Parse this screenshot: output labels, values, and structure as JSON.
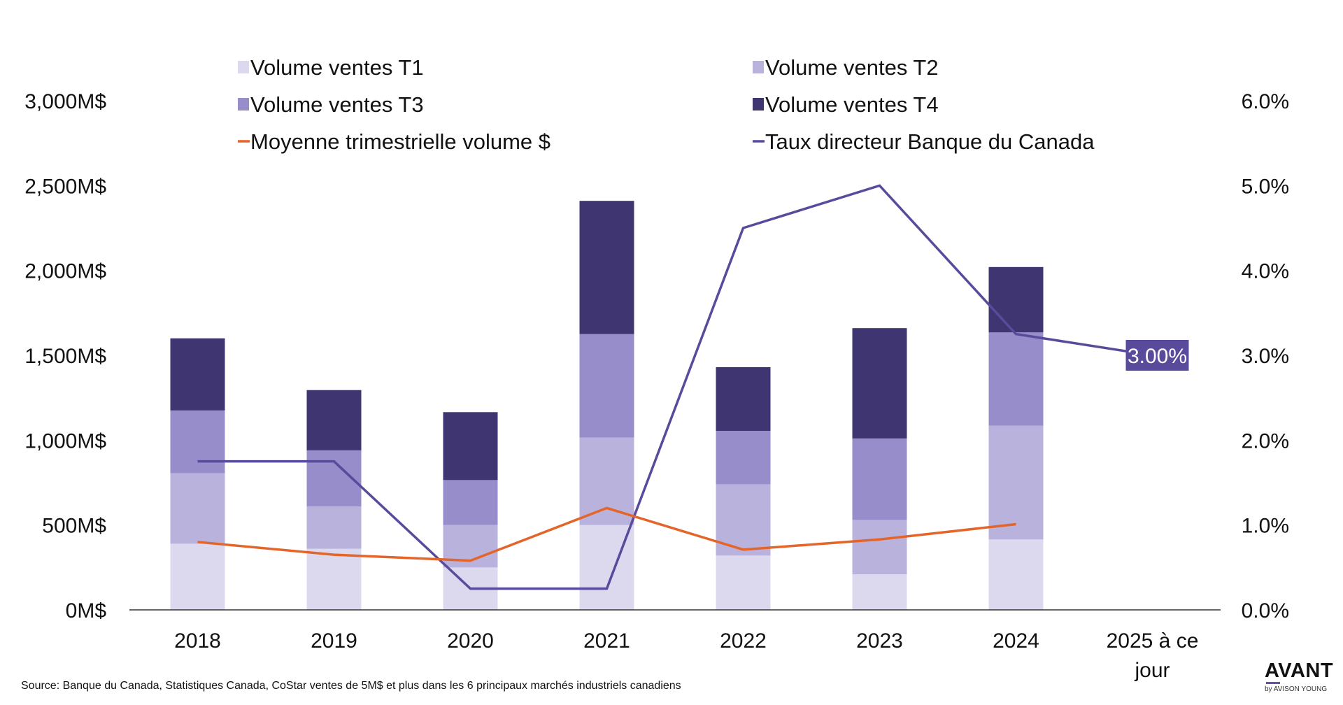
{
  "chart_data": {
    "type": "bar",
    "stacked": true,
    "categories": [
      "2018",
      "2019",
      "2020",
      "2021",
      "2022",
      "2023",
      "2024",
      "2025 à ce jour"
    ],
    "series": [
      {
        "name": "Volume ventes T1",
        "kind": "bar",
        "axis": "left",
        "color": "#dcd8ee",
        "values": [
          390,
          360,
          250,
          500,
          320,
          210,
          415,
          null
        ]
      },
      {
        "name": "Volume ventes T2",
        "kind": "bar",
        "axis": "left",
        "color": "#b9b2dc",
        "values": [
          415,
          250,
          250,
          515,
          420,
          320,
          670,
          null
        ]
      },
      {
        "name": "Volume ventes T3",
        "kind": "bar",
        "axis": "left",
        "color": "#978dcb",
        "values": [
          370,
          330,
          265,
          610,
          315,
          480,
          550,
          null
        ]
      },
      {
        "name": "Volume ventes T4",
        "kind": "bar",
        "axis": "left",
        "color": "#3e3571",
        "values": [
          425,
          355,
          400,
          785,
          375,
          650,
          385,
          null
        ]
      },
      {
        "name": "Moyenne trimestrielle volume $",
        "kind": "line",
        "axis": "left",
        "color": "#e4652a",
        "values": [
          400,
          325,
          290,
          600,
          355,
          415,
          505,
          null
        ]
      },
      {
        "name": "Taux directeur Banque du Canada",
        "kind": "line",
        "axis": "right",
        "color": "#5a4a9c",
        "values": [
          1.75,
          1.75,
          0.25,
          0.25,
          4.5,
          5.0,
          3.25,
          3.0
        ]
      }
    ],
    "y_left": {
      "ylim": [
        0,
        3000
      ],
      "ticks": [
        "0M$",
        "500M$",
        "1,000M$",
        "1,500M$",
        "2,000M$",
        "2,500M$",
        "3,000M$"
      ]
    },
    "y_right": {
      "ylim": [
        0,
        6
      ],
      "ticks": [
        "0.0%",
        "1.0%",
        "2.0%",
        "3.0%",
        "4.0%",
        "5.0%",
        "6.0%"
      ]
    },
    "annotation": {
      "label": "3.00%",
      "bg": "#5a4a9c"
    },
    "legend_position": "top",
    "grid": false,
    "xlabel": "",
    "ylabel": ""
  },
  "footer": {
    "source": "Source: Banque du Canada, Statistiques Canada, CoStar ventes de 5M$ et plus dans les 6 principaux marchés industriels canadiens"
  },
  "logo": {
    "main": "AVANT",
    "sub": "by AVISON YOUNG"
  }
}
